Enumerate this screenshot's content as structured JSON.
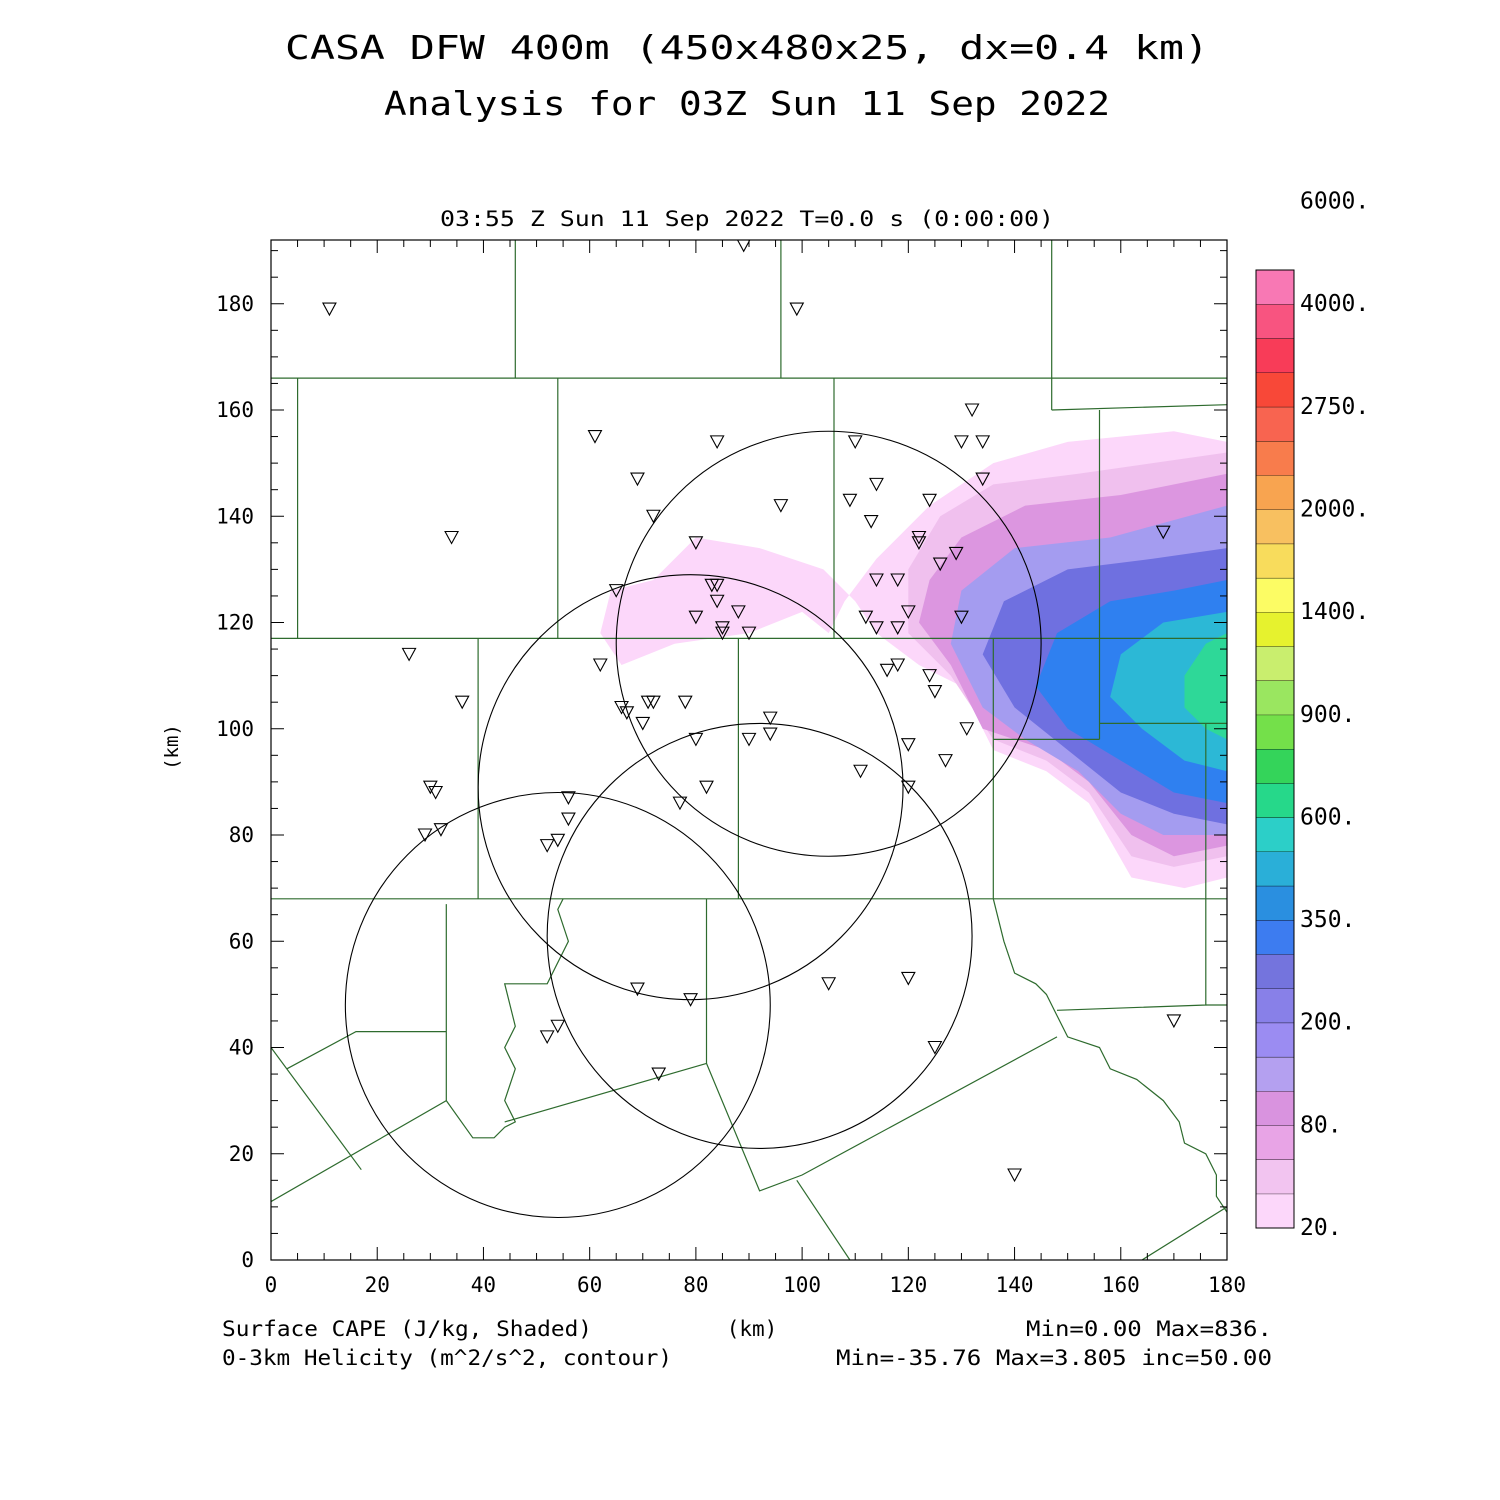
{
  "header": {
    "title_line1": "CASA DFW 400m (450x480x25, dx=0.4 km)",
    "title_line2": "Analysis for 03Z Sun 11 Sep 2022",
    "valid_time": "03:55 Z Sun 11 Sep 2022   T=0.0 s (0:00:00)"
  },
  "footer": {
    "shaded_label": "Surface CAPE (J/kg, Shaded)",
    "contour_label": "0-3km Helicity (m^2/s^2, contour)",
    "xunit": "(km)",
    "shaded_stats": "Min=0.00 Max=836.",
    "contour_stats": "Min=-35.76 Max=3.805 inc=50.00"
  },
  "chart_data": {
    "type": "heatmap",
    "xlabel": "(km)",
    "ylabel": "(km)",
    "xlim": [
      0,
      180
    ],
    "ylim": [
      0,
      192
    ],
    "xticks": [
      "0",
      "20",
      "40",
      "60",
      "80",
      "100",
      "120",
      "140",
      "160",
      "180"
    ],
    "yticks": [
      "0",
      "20",
      "40",
      "60",
      "80",
      "100",
      "120",
      "140",
      "160",
      "180"
    ],
    "colorbar": {
      "levels": [
        20,
        50,
        80,
        120,
        160,
        200,
        250,
        300,
        350,
        450,
        500,
        600,
        750,
        900,
        1100,
        1400,
        1700,
        2000,
        2400,
        2750,
        3250,
        4000,
        5000,
        6000
      ],
      "colors": [
        "#fcd7fa",
        "#f2c4f0",
        "#e8a4e6",
        "#d993df",
        "#b4a0f0",
        "#9b8cf2",
        "#8880e8",
        "#7474dd",
        "#3d7cf0",
        "#2a8fe0",
        "#2aafd8",
        "#2ccfc8",
        "#26d88a",
        "#34d45a",
        "#74e04a",
        "#9ae660",
        "#c9ee6e",
        "#e6f22e",
        "#fcfc64",
        "#f8dc5c",
        "#f8c060",
        "#f8a450",
        "#f87c4c",
        "#f86450",
        "#f84838",
        "#f83c58",
        "#f85480",
        "#f878b4"
      ],
      "labels": [
        "20.",
        "80.",
        "200.",
        "350.",
        "600.",
        "900.",
        "1400.",
        "2000.",
        "2750.",
        "4000.",
        "6000."
      ]
    },
    "cape_regions": [
      {
        "level": 20,
        "points": [
          [
            72,
            128
          ],
          [
            64,
            126
          ],
          [
            62,
            118
          ],
          [
            66,
            112
          ],
          [
            76,
            116
          ],
          [
            90,
            118
          ],
          [
            100,
            122
          ],
          [
            105,
            118
          ],
          [
            108,
            124
          ],
          [
            114,
            132
          ],
          [
            124,
            142
          ],
          [
            136,
            150
          ],
          [
            150,
            154
          ],
          [
            170,
            156
          ],
          [
            180,
            154
          ],
          [
            180,
            72
          ],
          [
            172,
            70
          ],
          [
            162,
            72
          ],
          [
            154,
            86
          ],
          [
            146,
            92
          ],
          [
            136,
            96
          ],
          [
            130,
            108
          ],
          [
            122,
            112
          ],
          [
            114,
            118
          ],
          [
            110,
            124
          ],
          [
            104,
            130
          ],
          [
            92,
            134
          ],
          [
            80,
            136
          ]
        ]
      },
      {
        "level": 50,
        "points": [
          [
            120,
            130
          ],
          [
            126,
            140
          ],
          [
            136,
            146
          ],
          [
            152,
            148
          ],
          [
            166,
            150
          ],
          [
            180,
            152
          ],
          [
            180,
            76
          ],
          [
            170,
            74
          ],
          [
            162,
            76
          ],
          [
            154,
            88
          ],
          [
            146,
            94
          ],
          [
            136,
            98
          ],
          [
            128,
            110
          ],
          [
            120,
            118
          ]
        ]
      },
      {
        "level": 80,
        "points": [
          [
            124,
            128
          ],
          [
            130,
            136
          ],
          [
            142,
            142
          ],
          [
            160,
            144
          ],
          [
            180,
            148
          ],
          [
            180,
            78
          ],
          [
            170,
            76
          ],
          [
            162,
            80
          ],
          [
            154,
            90
          ],
          [
            146,
            96
          ],
          [
            134,
            100
          ],
          [
            128,
            112
          ],
          [
            122,
            120
          ]
        ]
      },
      {
        "level": 160,
        "points": [
          [
            130,
            126
          ],
          [
            140,
            134
          ],
          [
            158,
            136
          ],
          [
            180,
            142
          ],
          [
            180,
            80
          ],
          [
            168,
            80
          ],
          [
            160,
            84
          ],
          [
            152,
            92
          ],
          [
            142,
            98
          ],
          [
            134,
            104
          ],
          [
            128,
            116
          ]
        ]
      },
      {
        "level": 300,
        "points": [
          [
            138,
            124
          ],
          [
            150,
            130
          ],
          [
            166,
            132
          ],
          [
            180,
            134
          ],
          [
            180,
            82
          ],
          [
            170,
            84
          ],
          [
            160,
            88
          ],
          [
            150,
            96
          ],
          [
            140,
            104
          ],
          [
            134,
            114
          ]
        ]
      },
      {
        "level": 450,
        "points": [
          [
            148,
            118
          ],
          [
            158,
            124
          ],
          [
            170,
            126
          ],
          [
            180,
            128
          ],
          [
            180,
            86
          ],
          [
            170,
            88
          ],
          [
            160,
            94
          ],
          [
            150,
            100
          ],
          [
            144,
            108
          ]
        ]
      },
      {
        "level": 600,
        "points": [
          [
            160,
            114
          ],
          [
            168,
            120
          ],
          [
            180,
            122
          ],
          [
            180,
            92
          ],
          [
            172,
            94
          ],
          [
            164,
            100
          ],
          [
            158,
            106
          ]
        ]
      },
      {
        "level": 750,
        "points": [
          [
            172,
            110
          ],
          [
            176,
            116
          ],
          [
            180,
            118
          ],
          [
            180,
            98
          ],
          [
            176,
            100
          ],
          [
            172,
            104
          ]
        ]
      }
    ],
    "helicity_contours": [
      {
        "center": [
          105,
          116
        ],
        "radius": 40
      },
      {
        "center": [
          79,
          89
        ],
        "radius": 40
      },
      {
        "center": [
          92,
          61
        ],
        "radius": 40
      },
      {
        "center": [
          54,
          48
        ],
        "radius": 40
      }
    ],
    "stations": [
      [
        11,
        179
      ],
      [
        89,
        191
      ],
      [
        99,
        179
      ],
      [
        61,
        155
      ],
      [
        84,
        154
      ],
      [
        110,
        154
      ],
      [
        132,
        160
      ],
      [
        130,
        154
      ],
      [
        134,
        154
      ],
      [
        34,
        136
      ],
      [
        69,
        147
      ],
      [
        72,
        140
      ],
      [
        80,
        135
      ],
      [
        96,
        142
      ],
      [
        109,
        143
      ],
      [
        113,
        139
      ],
      [
        114,
        146
      ],
      [
        124,
        143
      ],
      [
        134,
        147
      ],
      [
        122,
        136
      ],
      [
        122,
        135
      ],
      [
        129,
        133
      ],
      [
        126,
        131
      ],
      [
        65,
        126
      ],
      [
        83,
        127
      ],
      [
        84,
        127
      ],
      [
        84,
        124
      ],
      [
        80,
        121
      ],
      [
        85,
        119
      ],
      [
        88,
        122
      ],
      [
        90,
        118
      ],
      [
        85,
        118
      ],
      [
        114,
        128
      ],
      [
        118,
        128
      ],
      [
        112,
        121
      ],
      [
        114,
        119
      ],
      [
        120,
        122
      ],
      [
        118,
        119
      ],
      [
        130,
        121
      ],
      [
        168,
        137
      ],
      [
        26,
        114
      ],
      [
        62,
        112
      ],
      [
        36,
        105
      ],
      [
        66,
        104
      ],
      [
        67,
        103
      ],
      [
        71,
        105
      ],
      [
        72,
        105
      ],
      [
        70,
        101
      ],
      [
        78,
        105
      ],
      [
        116,
        111
      ],
      [
        118,
        112
      ],
      [
        124,
        110
      ],
      [
        125,
        107
      ],
      [
        94,
        102
      ],
      [
        94,
        99
      ],
      [
        90,
        98
      ],
      [
        80,
        98
      ],
      [
        120,
        97
      ],
      [
        127,
        94
      ],
      [
        131,
        100
      ],
      [
        111,
        92
      ],
      [
        30,
        89
      ],
      [
        31,
        88
      ],
      [
        82,
        89
      ],
      [
        120,
        89
      ],
      [
        56,
        87
      ],
      [
        56,
        83
      ],
      [
        29,
        80
      ],
      [
        32,
        81
      ],
      [
        52,
        78
      ],
      [
        54,
        79
      ],
      [
        77,
        86
      ],
      [
        69,
        51
      ],
      [
        79,
        49
      ],
      [
        105,
        52
      ],
      [
        120,
        53
      ],
      [
        52,
        42
      ],
      [
        54,
        44
      ],
      [
        73,
        35
      ],
      [
        125,
        40
      ],
      [
        170,
        45
      ],
      [
        140,
        16
      ]
    ],
    "boundaries": [
      [
        [
          0,
          166
        ],
        [
          180,
          166
        ]
      ],
      [
        [
          46,
          166
        ],
        [
          46,
          192
        ]
      ],
      [
        [
          96,
          166
        ],
        [
          96,
          192
        ]
      ],
      [
        [
          147,
          166
        ],
        [
          147,
          192
        ]
      ],
      [
        [
          5,
          166
        ],
        [
          5,
          117
        ]
      ],
      [
        [
          54,
          166
        ],
        [
          54,
          117
        ]
      ],
      [
        [
          0,
          117
        ],
        [
          180,
          117
        ]
      ],
      [
        [
          106,
          166
        ],
        [
          106,
          117
        ]
      ],
      [
        [
          0,
          68
        ],
        [
          180,
          68
        ]
      ],
      [
        [
          39,
          117
        ],
        [
          39,
          68
        ]
      ],
      [
        [
          88,
          117
        ],
        [
          88,
          68
        ]
      ],
      [
        [
          136,
          117
        ],
        [
          136,
          68
        ]
      ],
      [
        [
          147,
          166
        ],
        [
          147,
          160
        ]
      ],
      [
        [
          156,
          160
        ],
        [
          156,
          98
        ]
      ],
      [
        [
          136,
          98
        ],
        [
          156,
          98
        ]
      ],
      [
        [
          156,
          101
        ],
        [
          180,
          101
        ]
      ],
      [
        [
          147,
          160
        ],
        [
          180,
          161
        ]
      ],
      [
        [
          0,
          40
        ],
        [
          17,
          17
        ]
      ],
      [
        [
          33,
          67
        ],
        [
          33,
          30
        ],
        [
          0,
          11
        ]
      ],
      [
        [
          3,
          36
        ],
        [
          16,
          43
        ],
        [
          33,
          43
        ]
      ],
      [
        [
          33,
          30
        ],
        [
          38,
          23
        ],
        [
          42,
          23
        ],
        [
          44,
          25
        ],
        [
          46,
          26
        ],
        [
          44,
          30
        ],
        [
          46,
          36
        ],
        [
          44,
          40
        ],
        [
          46,
          44
        ],
        [
          44,
          52
        ],
        [
          52,
          52
        ],
        [
          56,
          60
        ],
        [
          54,
          66
        ],
        [
          55,
          68
        ]
      ],
      [
        [
          44,
          26
        ],
        [
          82,
          37
        ]
      ],
      [
        [
          82,
          68
        ],
        [
          82,
          37
        ],
        [
          92,
          13
        ],
        [
          100,
          16
        ],
        [
          148,
          42
        ]
      ],
      [
        [
          136,
          68
        ],
        [
          138,
          60
        ],
        [
          140,
          54
        ],
        [
          144,
          52
        ],
        [
          146,
          50
        ],
        [
          148,
          46
        ],
        [
          150,
          42
        ],
        [
          156,
          40
        ],
        [
          158,
          36
        ],
        [
          163,
          34
        ],
        [
          168,
          30
        ],
        [
          171,
          26
        ],
        [
          172,
          22
        ],
        [
          176,
          20
        ],
        [
          178,
          16
        ],
        [
          178,
          12
        ],
        [
          180,
          9
        ]
      ],
      [
        [
          148,
          47
        ],
        [
          176,
          48
        ],
        [
          176,
          101
        ]
      ],
      [
        [
          176,
          48
        ],
        [
          180,
          48
        ]
      ],
      [
        [
          99,
          15
        ],
        [
          109,
          0
        ]
      ],
      [
        [
          164,
          0
        ],
        [
          180,
          10
        ]
      ]
    ]
  }
}
